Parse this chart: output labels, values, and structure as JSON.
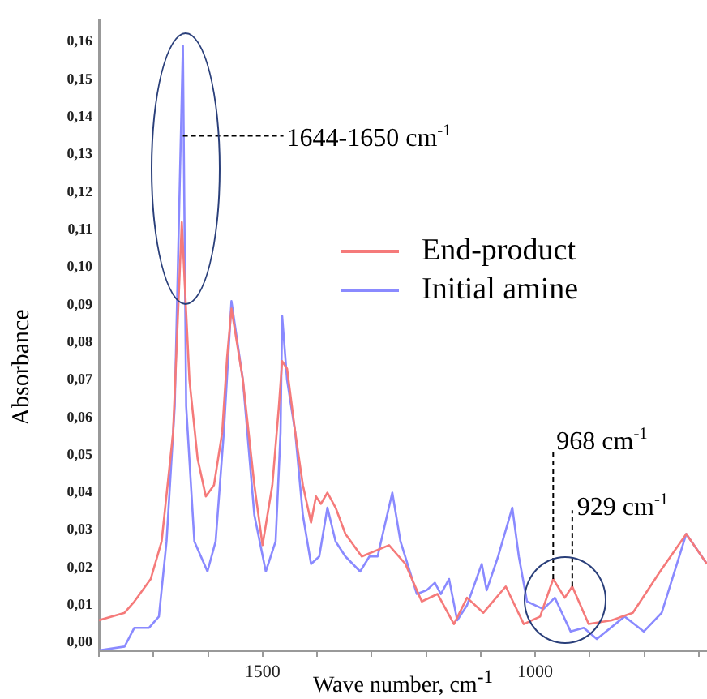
{
  "chart_data": {
    "type": "line",
    "xlabel": "Wave number, cm$^{-1}$",
    "ylabel": "Absorbance",
    "xlim": [
      1800,
      685
    ],
    "ylim": [
      -0.002,
      0.166
    ],
    "xticks": [
      {
        "value": 1800,
        "label": null
      },
      {
        "value": 1700,
        "label": null
      },
      {
        "value": 1600,
        "label": null
      },
      1500,
      {
        "value": 1400,
        "label": null
      },
      {
        "value": 1300,
        "label": null
      },
      {
        "value": 1200,
        "label": null
      },
      {
        "value": 1100,
        "label": null
      },
      1000,
      {
        "value": 900,
        "label": null
      },
      {
        "value": 800,
        "label": null
      },
      {
        "value": 700,
        "label": null
      }
    ],
    "yticks": [
      {
        "value": 0,
        "label": "0,00"
      },
      {
        "value": 0.01,
        "label": "0,01"
      },
      {
        "value": 0.02,
        "label": "0,02"
      },
      {
        "value": 0.03,
        "label": "0,03"
      },
      {
        "value": 0.04,
        "label": "0,04"
      },
      {
        "value": 0.05,
        "label": "0,05"
      },
      {
        "value": 0.06,
        "label": "0,06"
      },
      {
        "value": 0.07,
        "label": "0,07"
      },
      {
        "value": 0.08,
        "label": "0,08"
      },
      {
        "value": 0.09,
        "label": "0,09"
      },
      {
        "value": 0.1,
        "label": "0,10"
      },
      {
        "value": 0.11,
        "label": "0,11"
      },
      {
        "value": 0.12,
        "label": "0,12"
      },
      {
        "value": 0.13,
        "label": "0,13"
      },
      {
        "value": 0.14,
        "label": "0,14"
      },
      {
        "value": 0.15,
        "label": "0,15"
      },
      {
        "value": 0.16,
        "label": "0,16"
      }
    ],
    "grid": false,
    "legend": "top right",
    "marker": "none",
    "line_style": "solid",
    "series": [
      {
        "name": "End-product",
        "color": "#f57a7a",
        "x": [
          1800,
          1753,
          1735,
          1705,
          1685,
          1664,
          1648,
          1634,
          1619,
          1604,
          1589,
          1574,
          1565,
          1557,
          1536,
          1515,
          1500,
          1482,
          1470,
          1464,
          1455,
          1440,
          1426,
          1411,
          1402,
          1393,
          1381,
          1366,
          1348,
          1318,
          1268,
          1238,
          1208,
          1179,
          1149,
          1125,
          1095,
          1054,
          1021,
          991,
          967,
          946,
          932,
          902,
          860,
          821,
          771,
          723,
          685
        ],
        "values": [
          0.006,
          0.008,
          0.011,
          0.017,
          0.027,
          0.056,
          0.112,
          0.07,
          0.049,
          0.039,
          0.042,
          0.056,
          0.076,
          0.089,
          0.07,
          0.042,
          0.026,
          0.042,
          0.063,
          0.075,
          0.073,
          0.056,
          0.042,
          0.032,
          0.039,
          0.037,
          0.04,
          0.036,
          0.029,
          0.023,
          0.026,
          0.021,
          0.011,
          0.013,
          0.005,
          0.012,
          0.008,
          0.015,
          0.005,
          0.007,
          0.017,
          0.012,
          0.015,
          0.005,
          0.006,
          0.008,
          0.019,
          0.029,
          0.021
        ]
      },
      {
        "name": "Initial amine",
        "color": "#8a8aff",
        "x": [
          1800,
          1753,
          1735,
          1708,
          1690,
          1676,
          1661,
          1646,
          1640,
          1625,
          1601,
          1586,
          1571,
          1557,
          1536,
          1515,
          1494,
          1476,
          1467,
          1464,
          1455,
          1440,
          1426,
          1411,
          1396,
          1381,
          1366,
          1348,
          1321,
          1304,
          1289,
          1262,
          1247,
          1217,
          1199,
          1184,
          1173,
          1158,
          1143,
          1125,
          1098,
          1089,
          1068,
          1042,
          1030,
          1015,
          985,
          964,
          935,
          911,
          887,
          836,
          801,
          768,
          723,
          685
        ],
        "values": [
          -0.002,
          -0.001,
          0.004,
          0.004,
          0.007,
          0.027,
          0.063,
          0.159,
          0.063,
          0.027,
          0.019,
          0.027,
          0.056,
          0.091,
          0.07,
          0.034,
          0.019,
          0.027,
          0.056,
          0.087,
          0.07,
          0.056,
          0.034,
          0.021,
          0.023,
          0.036,
          0.027,
          0.023,
          0.019,
          0.023,
          0.023,
          0.04,
          0.027,
          0.013,
          0.014,
          0.016,
          0.013,
          0.017,
          0.006,
          0.01,
          0.021,
          0.014,
          0.023,
          0.036,
          0.023,
          0.011,
          0.009,
          0.012,
          0.003,
          0.004,
          0.001,
          0.007,
          0.003,
          0.008,
          0.029,
          0.021
        ]
      }
    ],
    "annotations": [
      {
        "text": "1644-1650 cm$^{-1}$",
        "x": 1646,
        "y": 0.135
      },
      {
        "text": "968 cm$^{-1}$",
        "x": 967,
        "y": 0.017
      },
      {
        "text": "929 cm$^{-1}$",
        "x": 932,
        "y": 0.015
      }
    ]
  }
}
